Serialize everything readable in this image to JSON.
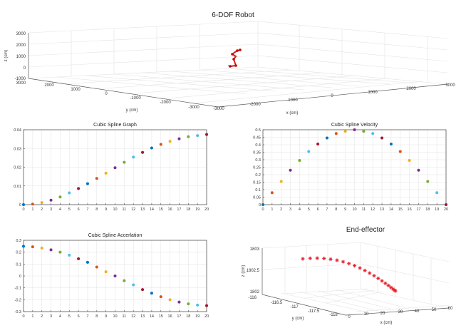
{
  "figure": {
    "robot": {
      "title": "6-DOF Robot",
      "zlabel": "z (cm)",
      "ylabel": "y (cm)",
      "xlabel": "x (cm)",
      "zticks": [
        "3000",
        "2000",
        "1000",
        "0",
        "-1000"
      ],
      "yticks": [
        "3000",
        "2000",
        "1000",
        "0",
        "-1000",
        "-2000",
        "-3000"
      ],
      "xticks": [
        "-3000",
        "-2000",
        "-1000",
        "0",
        "1000",
        "2000",
        "3000"
      ]
    },
    "endeff": {
      "title": "End-effector",
      "zlabel": "z (cm)",
      "ylabel": "y (cm)",
      "xlabel": "x (cm)",
      "zticks": [
        "1803",
        "1802.5",
        "1802"
      ],
      "yticks": [
        "-116",
        "-116.5",
        "-117",
        "-117.5",
        "-118"
      ],
      "xticks": [
        "0",
        "10",
        "20",
        "30",
        "40",
        "50",
        "60"
      ]
    }
  },
  "colors": [
    "#0072BD",
    "#D95319",
    "#EDB120",
    "#7E2F8E",
    "#77AC30",
    "#4DBEEE",
    "#A2142F"
  ],
  "chart_data": [
    {
      "type": "scatter",
      "id": "graph",
      "title": "Cubic Spline Graph",
      "x": [
        0,
        1,
        2,
        3,
        4,
        5,
        6,
        7,
        8,
        9,
        10,
        11,
        12,
        13,
        14,
        15,
        16,
        17,
        18,
        19,
        20
      ],
      "y": [
        0,
        0.0003,
        0.0011,
        0.0024,
        0.0041,
        0.0063,
        0.0086,
        0.0112,
        0.014,
        0.0168,
        0.0197,
        0.0226,
        0.0254,
        0.0279,
        0.0303,
        0.0322,
        0.0338,
        0.0352,
        0.0363,
        0.0369,
        0.0375
      ],
      "xlim": [
        0,
        20
      ],
      "ylim": [
        0,
        0.04
      ],
      "xticks": [
        "0",
        "1",
        "2",
        "3",
        "4",
        "5",
        "6",
        "7",
        "8",
        "9",
        "10",
        "11",
        "12",
        "13",
        "14",
        "15",
        "16",
        "17",
        "18",
        "19",
        "20"
      ],
      "yticks": [
        "0",
        "0.01",
        "0.02",
        "0.03",
        "0.04"
      ],
      "grid": true
    },
    {
      "type": "scatter",
      "id": "velocity",
      "title": "Cubic Spline Velocity",
      "x": [
        0,
        1,
        2,
        3,
        4,
        5,
        6,
        7,
        8,
        9,
        10,
        11,
        12,
        13,
        14,
        15,
        16,
        17,
        18,
        19,
        20
      ],
      "y": [
        0,
        0.08,
        0.155,
        0.23,
        0.295,
        0.355,
        0.405,
        0.445,
        0.475,
        0.49,
        0.5,
        0.49,
        0.475,
        0.445,
        0.405,
        0.355,
        0.295,
        0.23,
        0.155,
        0.08,
        0
      ],
      "xlim": [
        0,
        20
      ],
      "ylim": [
        0,
        0.5
      ],
      "xticks": [
        "0",
        "1",
        "2",
        "3",
        "4",
        "5",
        "6",
        "7",
        "8",
        "9",
        "10",
        "11",
        "12",
        "13",
        "14",
        "15",
        "16",
        "17",
        "18",
        "19",
        "20"
      ],
      "yticks": [
        "0",
        "0.05",
        "0.1",
        "0.15",
        "0.2",
        "0.25",
        "0.3",
        "0.35",
        "0.4",
        "0.45",
        "0.5"
      ],
      "grid": true
    },
    {
      "type": "scatter",
      "id": "acceleration",
      "title": "Cubic Spline Accerlation",
      "x": [
        0,
        1,
        2,
        3,
        4,
        5,
        6,
        7,
        8,
        9,
        10,
        11,
        12,
        13,
        14,
        15,
        16,
        17,
        18,
        19,
        20
      ],
      "y": [
        0.25,
        0.245,
        0.235,
        0.22,
        0.2,
        0.175,
        0.145,
        0.115,
        0.075,
        0.035,
        0,
        -0.04,
        -0.075,
        -0.115,
        -0.145,
        -0.175,
        -0.2,
        -0.22,
        -0.235,
        -0.245,
        -0.25
      ],
      "xlim": [
        0,
        20
      ],
      "ylim": [
        -0.3,
        0.3
      ],
      "xticks": [
        "0",
        "1",
        "2",
        "3",
        "4",
        "5",
        "6",
        "7",
        "8",
        "9",
        "10",
        "11",
        "12",
        "13",
        "14",
        "15",
        "16",
        "17",
        "18",
        "19",
        "20"
      ],
      "yticks": [
        "0.3",
        "0.2",
        "0.1",
        "0",
        "-0.1",
        "-0.2",
        "-0.3"
      ],
      "grid": true
    }
  ]
}
